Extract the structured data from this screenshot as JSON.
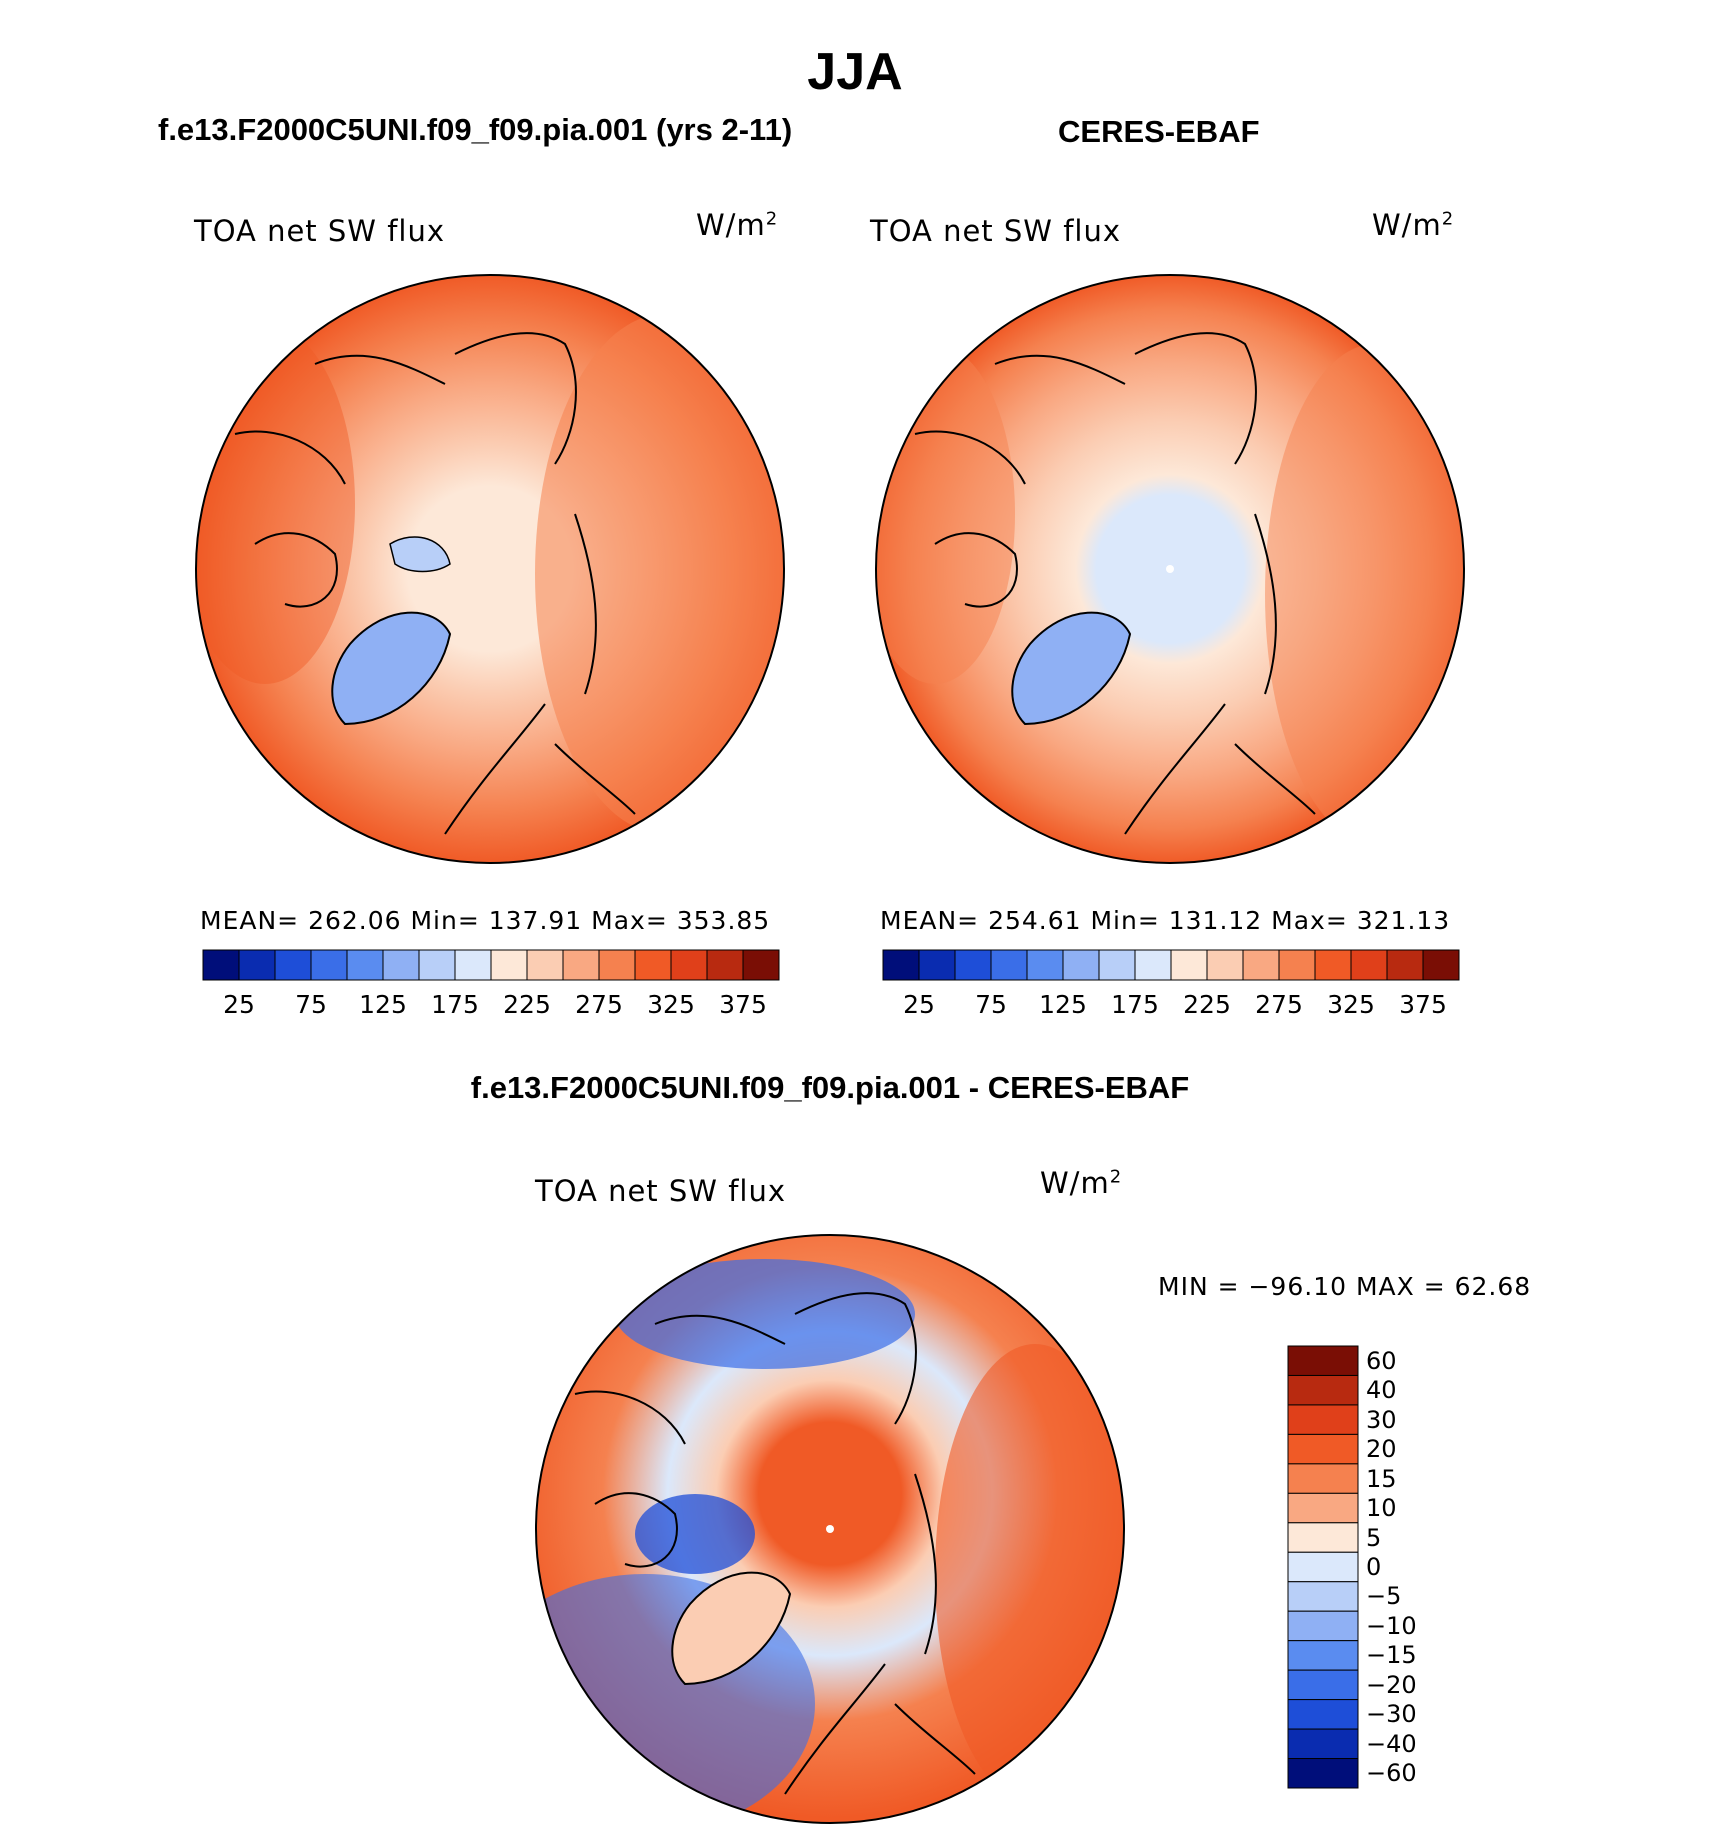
{
  "title": "JJA",
  "left_panel": {
    "case_title": "f.e13.F2000C5UNI.f09_f09.pia.001 (yrs 2-11)",
    "variable": "TOA net SW flux",
    "units_base": "W/m",
    "units_exp": "2",
    "stats": "MEAN= 262.06   Min= 137.91   Max= 353.85"
  },
  "right_panel": {
    "case_title": "CERES-EBAF",
    "variable": "TOA net SW flux",
    "units_base": "W/m",
    "units_exp": "2",
    "stats": "MEAN= 254.61   Min= 131.12   Max= 321.13"
  },
  "diff_panel": {
    "case_title": "f.e13.F2000C5UNI.f09_f09.pia.001 - CERES-EBAF",
    "variable": "TOA net SW flux",
    "units_base": "W/m",
    "units_exp": "2",
    "minmax": "MIN = −96.10 MAX =   62.68"
  },
  "chart_data": [
    {
      "type": "heatmap",
      "name": "model",
      "projection": "north-polar-stereographic",
      "colorbar_ticks": [
        "25",
        "75",
        "125",
        "175",
        "225",
        "275",
        "325",
        "375"
      ],
      "stats": {
        "mean": 262.06,
        "min": 137.91,
        "max": 353.85
      }
    },
    {
      "type": "heatmap",
      "name": "observation",
      "projection": "north-polar-stereographic",
      "colorbar_ticks": [
        "25",
        "75",
        "125",
        "175",
        "225",
        "275",
        "325",
        "375"
      ],
      "stats": {
        "mean": 254.61,
        "min": 131.12,
        "max": 321.13
      }
    },
    {
      "type": "heatmap",
      "name": "difference",
      "projection": "north-polar-stereographic",
      "colorbar_ticks": [
        "60",
        "40",
        "30",
        "20",
        "15",
        "10",
        "5",
        "0",
        "−5",
        "−10",
        "−15",
        "−20",
        "−30",
        "−40",
        "−60"
      ],
      "stats": {
        "min": -96.1,
        "max": 62.68
      }
    }
  ],
  "colors": {
    "abs_scale": [
      "#000e7a",
      "#0a2cb0",
      "#1e4ed8",
      "#3a6ee8",
      "#5a8cf0",
      "#8fb0f4",
      "#b8cff8",
      "#dbe8fb",
      "#fde8d8",
      "#fbcdb3",
      "#f9a882",
      "#f5814f",
      "#f05a26",
      "#e0401a",
      "#b82a10",
      "#7a0e05"
    ],
    "diff_scale": [
      "#7a0e05",
      "#b82a10",
      "#e0401a",
      "#f05a26",
      "#f5814f",
      "#f9a882",
      "#fde8d8",
      "#dbe8fb",
      "#b8cff8",
      "#8fb0f4",
      "#5a8cf0",
      "#3a6ee8",
      "#1e4ed8",
      "#0a2cb0",
      "#000e7a"
    ]
  }
}
